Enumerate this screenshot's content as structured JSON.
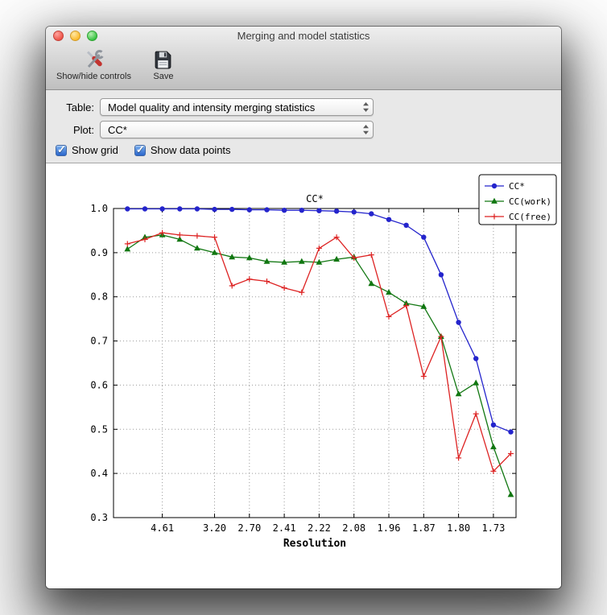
{
  "window": {
    "title": "Merging and model statistics"
  },
  "toolbar": {
    "items": [
      {
        "label": "Show/hide controls",
        "icon": "tools-icon"
      },
      {
        "label": "Save",
        "icon": "save-icon"
      }
    ]
  },
  "controls": {
    "table_label": "Table:",
    "table_value": "Model quality and intensity merging statistics",
    "plot_label": "Plot:",
    "plot_value": "CC*",
    "checkboxes": [
      {
        "label": "Show grid",
        "checked": true
      },
      {
        "label": "Show data points",
        "checked": true
      }
    ]
  },
  "chart_data": {
    "type": "line",
    "title": "CC*",
    "xlabel": "Resolution",
    "ylabel": "",
    "ylim": [
      0.3,
      1.0
    ],
    "yticks": [
      0.3,
      0.4,
      0.5,
      0.6,
      0.7,
      0.8,
      0.9,
      1.0
    ],
    "xtick_labels": [
      "4.61",
      "3.20",
      "2.70",
      "2.41",
      "2.22",
      "2.08",
      "1.96",
      "1.87",
      "1.80",
      "1.73"
    ],
    "xtick_positions": [
      2,
      5,
      7,
      9,
      11,
      13,
      15,
      17,
      19,
      21
    ],
    "grid": true,
    "show_data_points": true,
    "legend_position": "upper right",
    "series": [
      {
        "name": "CC*",
        "color": "#2424cc",
        "marker": "circle",
        "values": [
          0.999,
          0.999,
          0.999,
          0.999,
          0.999,
          0.998,
          0.998,
          0.997,
          0.997,
          0.996,
          0.996,
          0.995,
          0.994,
          0.992,
          0.988,
          0.975,
          0.962,
          0.935,
          0.85,
          0.742,
          0.66,
          0.51,
          0.494
        ]
      },
      {
        "name": "CC(work)",
        "color": "#117711",
        "marker": "triangle",
        "values": [
          0.908,
          0.935,
          0.94,
          0.93,
          0.91,
          0.9,
          0.89,
          0.888,
          0.88,
          0.878,
          0.88,
          0.878,
          0.885,
          0.89,
          0.83,
          0.81,
          0.785,
          0.778,
          0.71,
          0.58,
          0.605,
          0.46,
          0.352
        ]
      },
      {
        "name": "CC(free)",
        "color": "#dd2222",
        "marker": "plus",
        "values": [
          0.92,
          0.93,
          0.945,
          0.94,
          0.938,
          0.935,
          0.825,
          0.84,
          0.835,
          0.82,
          0.81,
          0.91,
          0.935,
          0.888,
          0.895,
          0.755,
          0.78,
          0.62,
          0.71,
          0.435,
          0.535,
          0.405,
          0.445
        ]
      }
    ]
  }
}
